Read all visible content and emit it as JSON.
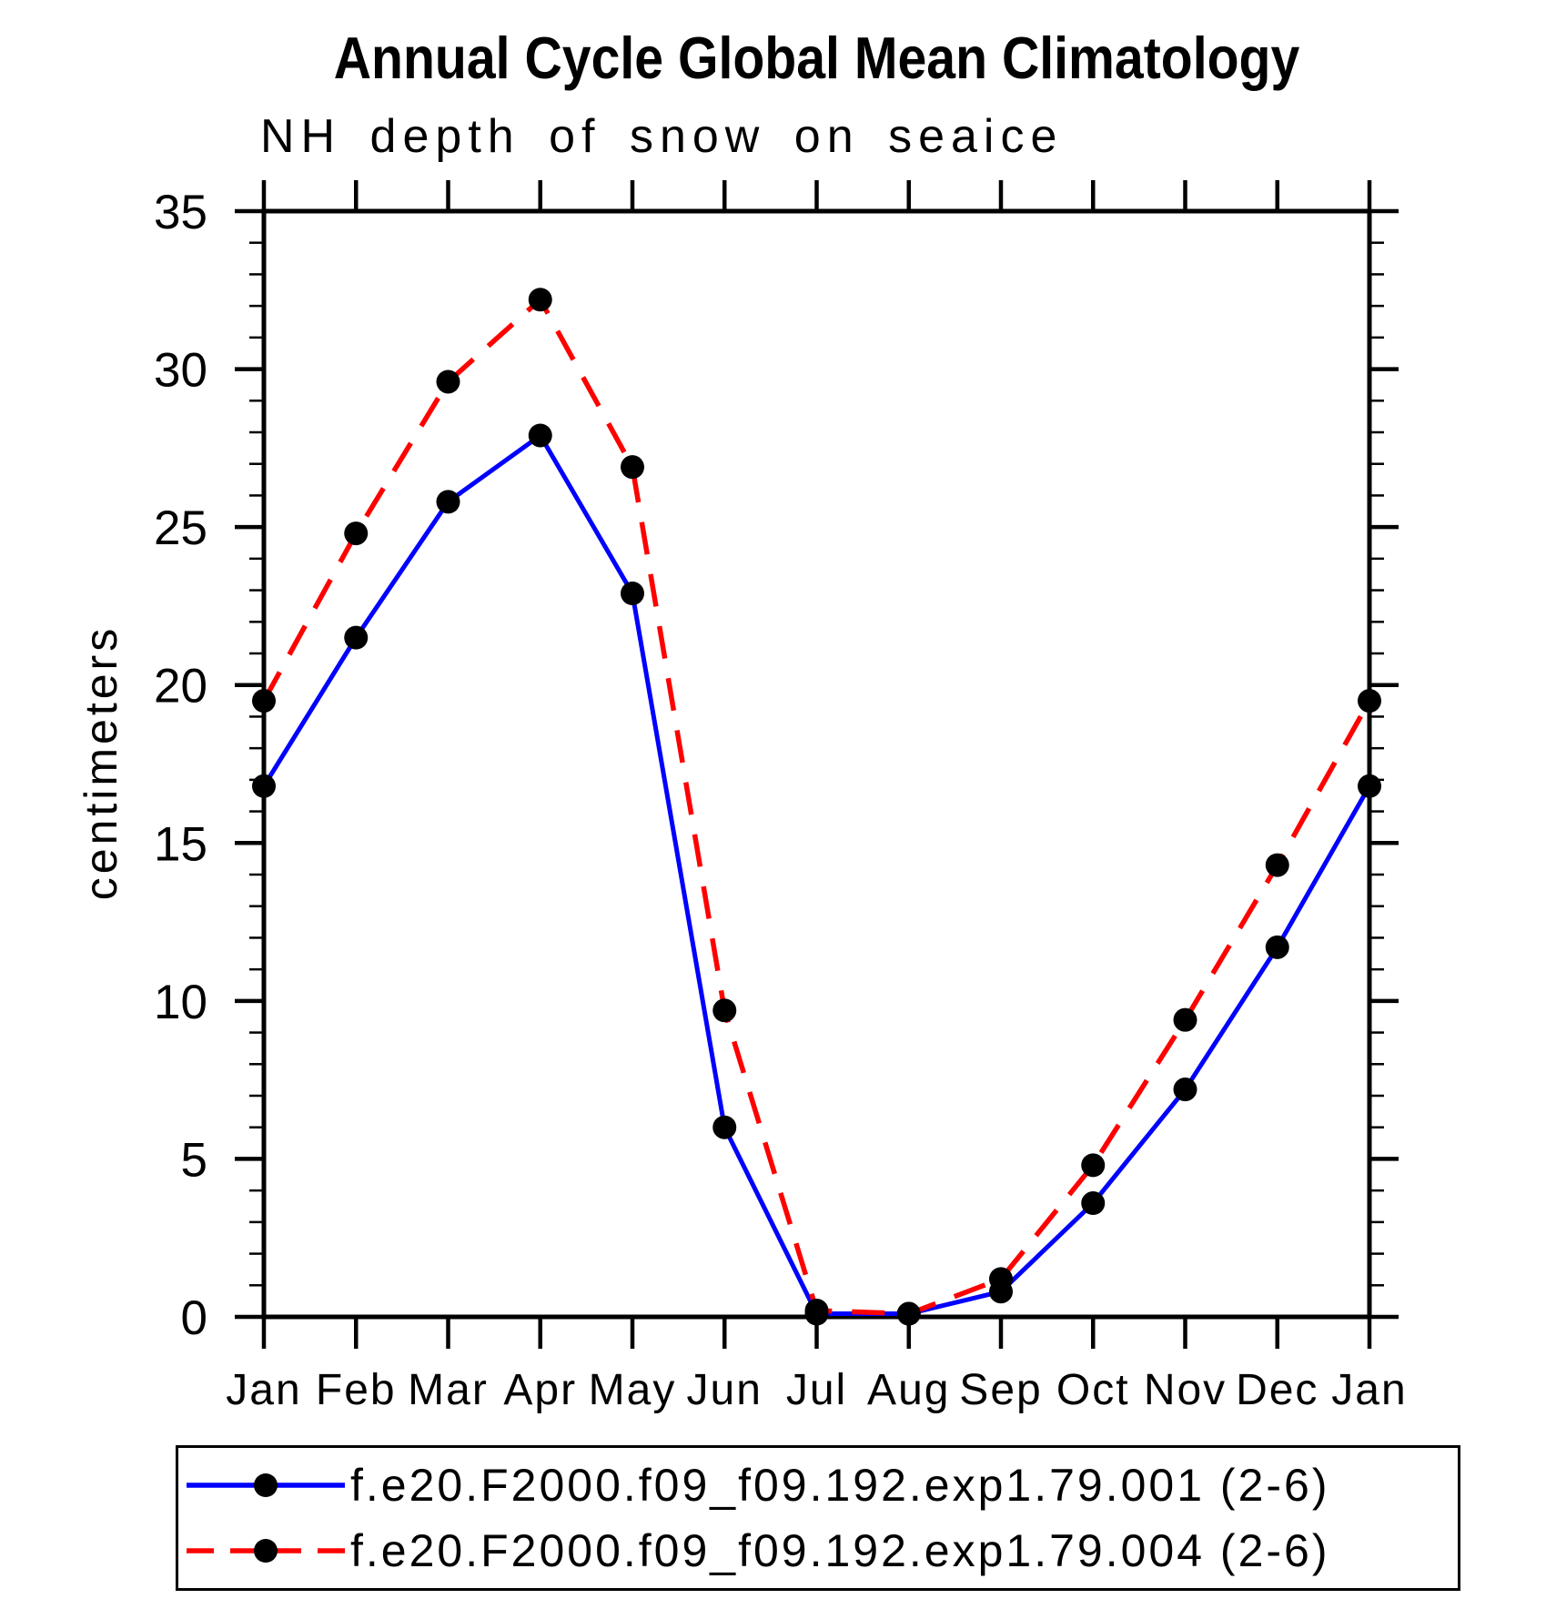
{
  "page": {
    "title": "Annual Cycle Global Mean Climatology",
    "subtitle": "NH depth of snow on seaice"
  },
  "chart_data": {
    "type": "line",
    "title": "Annual Cycle Global Mean Climatology",
    "subtitle": "NH depth of snow on seaice",
    "xlabel": "",
    "ylabel": "centimeters",
    "categories": [
      "Jan",
      "Feb",
      "Mar",
      "Apr",
      "May",
      "Jun",
      "Jul",
      "Aug",
      "Sep",
      "Oct",
      "Nov",
      "Dec",
      "Jan"
    ],
    "ylim": [
      0,
      35
    ],
    "yticks_major": [
      0,
      5,
      10,
      15,
      20,
      25,
      30,
      35
    ],
    "ytick_minor_step": 1,
    "grid": false,
    "legend_position": "bottom",
    "marker": {
      "shape": "circle",
      "color": "#000000",
      "radius": 13
    },
    "axis_color": "#000000",
    "series": [
      {
        "name": "f.e20.F2000.f09_f09.192.exp1.79.001 (2-6)",
        "color": "#0000ff",
        "line_style": "solid",
        "values": [
          16.8,
          21.5,
          25.8,
          27.9,
          22.9,
          6.0,
          0.1,
          0.1,
          0.8,
          3.6,
          7.2,
          11.7,
          16.8
        ]
      },
      {
        "name": "f.e20.F2000.f09_f09.192.exp1.79.004 (2-6)",
        "color": "#ff0000",
        "line_style": "dashed",
        "values": [
          19.5,
          24.8,
          29.6,
          32.2,
          26.9,
          9.7,
          0.2,
          0.1,
          1.2,
          4.8,
          9.4,
          14.3,
          19.5
        ]
      }
    ]
  }
}
